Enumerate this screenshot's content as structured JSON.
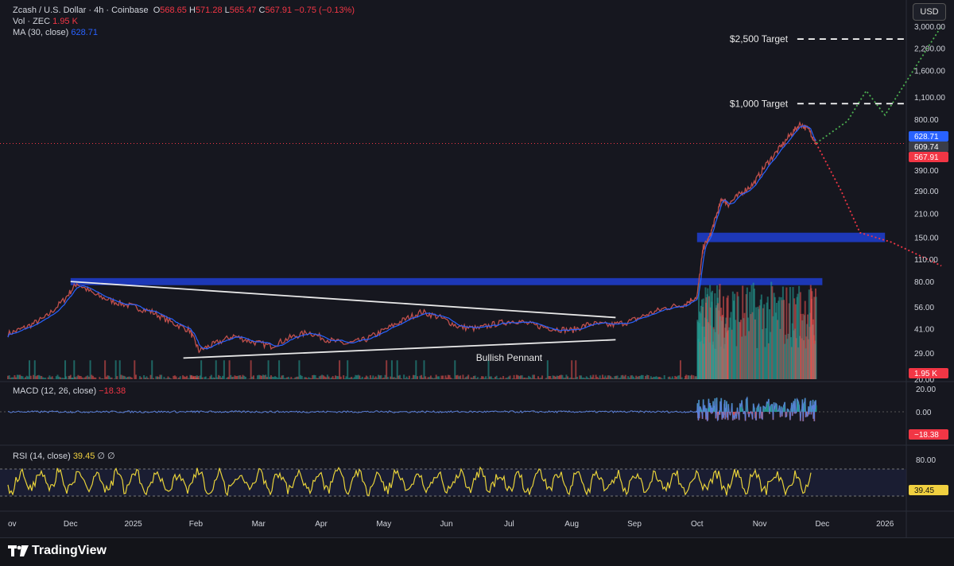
{
  "legend": {
    "symbol": "Zcash / U.S. Dollar · 4h · Coinbase",
    "o_label": "O",
    "o_value": "568.65",
    "h_label": "H",
    "h_value": "571.28",
    "l_label": "L",
    "l_value": "565.47",
    "c_label": "C",
    "c_value": "567.91",
    "change": "−0.75 (−0.13%)",
    "vol_label": "Vol · ZEC",
    "vol_value": "1.95 K",
    "ma_label": "MA (30, close)",
    "ma_value": "628.71",
    "macd_label": "MACD (12, 26, close)",
    "macd_value": "−18.38",
    "rsi_label": "RSI (14, close)",
    "rsi_value": "39.45",
    "rsi_extra": "∅  ∅"
  },
  "currency_button": "USD",
  "brand": "TradingView",
  "colors": {
    "background": "#16171f",
    "up": "#26a69a",
    "down": "#ef5350",
    "ma": "#2962ff",
    "zone": "#1e3cc8",
    "rsi": "#e8d23a",
    "green_path": "#4caf50",
    "red_path": "#f23645"
  },
  "chart_data": {
    "type": "line",
    "price_axis": {
      "scale": "log",
      "ticks": [
        "3,000.00",
        "2,200.00",
        "1,600.00",
        "1,100.00",
        "800.00",
        "390.00",
        "290.00",
        "210.00",
        "150.00",
        "110.00",
        "80.00",
        "56.00",
        "41.00",
        "29.00",
        "20.00"
      ],
      "tick_values": [
        3000,
        2200,
        1600,
        1100,
        800,
        390,
        290,
        210,
        150,
        110,
        80,
        56,
        41,
        29,
        20
      ]
    },
    "price_tags": [
      {
        "label": "628.71",
        "value": 628.71,
        "color": "#2962ff"
      },
      {
        "label": "609.74",
        "value": 609.74,
        "color": "#3a3d48"
      },
      {
        "label": "567.91",
        "value": 567.91,
        "color": "#f23645"
      }
    ],
    "volume_tag": "1.95 K",
    "macd_axis": {
      "ticks": [
        "20.00",
        "0.00"
      ],
      "tick_values": [
        20,
        0
      ],
      "current": "−18.38"
    },
    "rsi_axis": {
      "ticks": [
        "80.00"
      ],
      "tick_values": [
        80
      ],
      "current": "39.45"
    },
    "time_axis": {
      "labels": [
        "ov",
        "Dec",
        "2025",
        "Feb",
        "Mar",
        "Apr",
        "May",
        "Jun",
        "Jul",
        "Aug",
        "Sep",
        "Oct",
        "Nov",
        "Dec",
        "2026"
      ],
      "months_index": [
        0,
        1,
        2,
        3,
        4,
        5,
        6,
        7,
        8,
        9,
        10,
        11,
        12,
        13,
        14
      ]
    },
    "price_series": {
      "x_months": [
        0,
        0.3,
        0.6,
        0.9,
        1.1,
        1.4,
        1.7,
        2.0,
        2.3,
        2.6,
        2.9,
        3.05,
        3.3,
        3.6,
        3.9,
        4.2,
        4.5,
        4.8,
        5.1,
        5.4,
        5.7,
        6.0,
        6.3,
        6.6,
        6.9,
        7.2,
        7.5,
        7.8,
        8.1,
        8.4,
        8.7,
        9.0,
        9.3,
        9.6,
        9.9,
        10.2,
        10.5,
        10.8,
        11.0,
        11.1,
        11.2,
        11.3,
        11.4,
        11.5,
        11.7,
        11.9,
        12.1,
        12.3,
        12.5,
        12.65,
        12.8,
        12.9
      ],
      "y_price": [
        38,
        42,
        48,
        62,
        78,
        66,
        60,
        56,
        52,
        45,
        40,
        30,
        33,
        37,
        34,
        32,
        36,
        39,
        35,
        33,
        35,
        40,
        46,
        52,
        48,
        42,
        41,
        44,
        46,
        43,
        41,
        40,
        44,
        43,
        45,
        50,
        55,
        58,
        65,
        130,
        150,
        200,
        260,
        240,
        280,
        320,
        420,
        520,
        650,
        750,
        680,
        570
      ]
    },
    "annotations": {
      "targets": [
        {
          "label": "$2,500 Target",
          "value": 2500
        },
        {
          "label": "$1,000 Target",
          "value": 1000
        }
      ],
      "pattern_label": "Bullish Pennant",
      "zones": [
        {
          "low": 140,
          "high": 160,
          "x_start_months": 11.0,
          "x_end_months": 14.0
        },
        {
          "low": 76,
          "high": 84,
          "x_start_months": 1.0,
          "x_end_months": 13.0
        }
      ],
      "pennant_upper": {
        "x_months": [
          1.0,
          9.7
        ],
        "y_price": [
          80,
          48
        ]
      },
      "pennant_lower": {
        "x_months": [
          2.8,
          9.7
        ],
        "y_price": [
          27,
          35
        ]
      },
      "bull_path": {
        "x_months": [
          12.9,
          13.4,
          13.7,
          14.0,
          14.9
        ],
        "y_price": [
          570,
          780,
          1200,
          850,
          3000
        ]
      },
      "bear_path": {
        "x_months": [
          12.9,
          13.3,
          13.6,
          14.1,
          14.9
        ],
        "y_price": [
          570,
          290,
          160,
          140,
          100
        ]
      }
    }
  }
}
